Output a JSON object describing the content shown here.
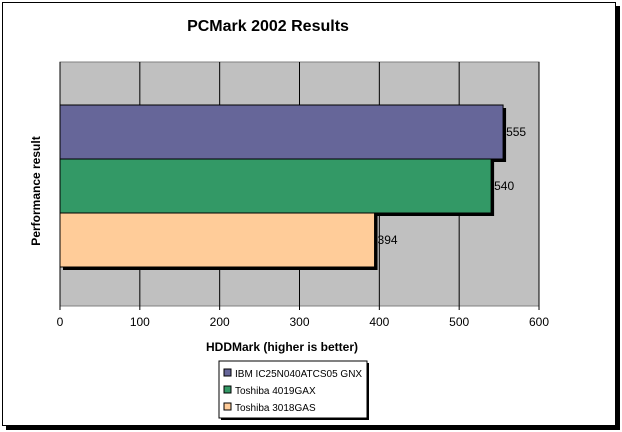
{
  "chart_data": {
    "type": "bar",
    "orientation": "horizontal",
    "title": "PCMark 2002 Results",
    "xlabel": "HDDMark (higher is better)",
    "ylabel": "Performance result",
    "xlim": [
      0,
      600
    ],
    "x_ticks": [
      0,
      100,
      200,
      300,
      400,
      500,
      600
    ],
    "grid": true,
    "legend_position": "bottom",
    "series": [
      {
        "name": "IBM IC25N040ATCS05 GNX",
        "value": 555,
        "color": "#666699"
      },
      {
        "name": "Toshiba 4019GAX",
        "value": 540,
        "color": "#339966"
      },
      {
        "name": "Toshiba 3018GAS",
        "value": 394,
        "color": "#FFCC99"
      }
    ],
    "plot_background": "#C0C0C0"
  }
}
